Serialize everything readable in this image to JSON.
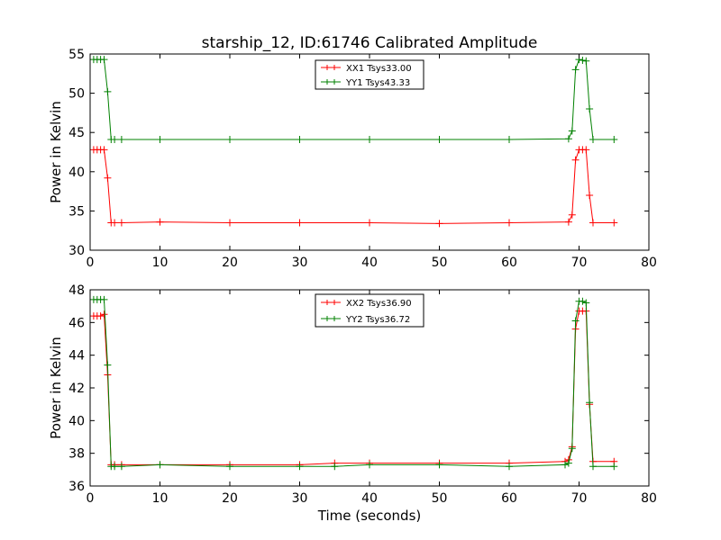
{
  "figure": {
    "title": "starship_12, ID:61746 Calibrated Amplitude",
    "xlabel": "Time (seconds)"
  },
  "chart_data": [
    {
      "type": "line",
      "title": "starship_12, ID:61746 Calibrated Amplitude",
      "xlabel": "",
      "ylabel": "Power in Kelvin",
      "xlim": [
        0,
        80
      ],
      "ylim": [
        30,
        55
      ],
      "xticks": [
        "0",
        "10",
        "20",
        "30",
        "40",
        "50",
        "60",
        "70",
        "80"
      ],
      "yticks": [
        "30",
        "35",
        "40",
        "45",
        "50",
        "55"
      ],
      "grid": false,
      "legend": "top-center",
      "marker": "+",
      "series": [
        {
          "name": "XX1 Tsys33.00",
          "color": "#ff0000",
          "x": [
            0.5,
            1.0,
            1.5,
            2.0,
            2.5,
            3.0,
            3.5,
            4.5,
            10,
            20,
            30,
            40,
            50,
            60,
            68.5,
            69.0,
            69.5,
            70.0,
            70.5,
            71.0,
            71.5,
            72.0,
            75.0
          ],
          "values": [
            42.8,
            42.8,
            42.8,
            42.8,
            39.2,
            33.5,
            33.5,
            33.5,
            33.6,
            33.5,
            33.5,
            33.5,
            33.4,
            33.5,
            33.6,
            34.5,
            41.5,
            42.8,
            42.8,
            42.8,
            37.0,
            33.5,
            33.5
          ]
        },
        {
          "name": "YY1 Tsys43.33",
          "color": "#008000",
          "x": [
            0.5,
            1.0,
            1.5,
            2.0,
            2.5,
            3.0,
            3.5,
            4.5,
            10,
            20,
            30,
            40,
            50,
            60,
            68.5,
            69.0,
            69.5,
            70.0,
            70.5,
            71.0,
            71.5,
            72.0,
            75.0
          ],
          "values": [
            54.3,
            54.3,
            54.3,
            54.3,
            50.2,
            44.1,
            44.1,
            44.1,
            44.1,
            44.1,
            44.1,
            44.1,
            44.1,
            44.1,
            44.2,
            45.2,
            53.0,
            54.3,
            54.2,
            54.1,
            48.0,
            44.1,
            44.1
          ]
        }
      ]
    },
    {
      "type": "line",
      "title": "",
      "xlabel": "Time (seconds)",
      "ylabel": "Power in Kelvin",
      "xlim": [
        0,
        80
      ],
      "ylim": [
        36,
        48
      ],
      "xticks": [
        "0",
        "10",
        "20",
        "30",
        "40",
        "50",
        "60",
        "70",
        "80"
      ],
      "yticks": [
        "36",
        "38",
        "40",
        "42",
        "44",
        "46",
        "48"
      ],
      "grid": false,
      "legend": "top-center",
      "marker": "+",
      "series": [
        {
          "name": "XX2 Tsys36.90",
          "color": "#ff0000",
          "x": [
            0.5,
            1.0,
            1.5,
            2.0,
            2.5,
            3.0,
            3.5,
            4.5,
            10,
            20,
            30,
            35,
            40,
            50,
            60,
            68.0,
            68.5,
            69.0,
            69.5,
            70.0,
            70.5,
            71.0,
            71.5,
            72.0,
            75.0
          ],
          "values": [
            46.4,
            46.4,
            46.4,
            46.5,
            42.8,
            37.3,
            37.3,
            37.3,
            37.3,
            37.3,
            37.3,
            37.4,
            37.4,
            37.4,
            37.4,
            37.5,
            37.6,
            38.4,
            45.6,
            46.7,
            46.7,
            46.7,
            41.0,
            37.5,
            37.5
          ]
        },
        {
          "name": "YY2 Tsys36.72",
          "color": "#008000",
          "x": [
            0.5,
            1.0,
            1.5,
            2.0,
            2.5,
            3.0,
            3.5,
            4.5,
            10,
            20,
            30,
            35,
            40,
            50,
            60,
            68.0,
            68.5,
            69.0,
            69.5,
            70.0,
            70.5,
            71.0,
            71.5,
            72.0,
            75.0
          ],
          "values": [
            47.4,
            47.4,
            47.4,
            47.4,
            43.4,
            37.2,
            37.2,
            37.2,
            37.3,
            37.2,
            37.2,
            37.2,
            37.3,
            37.3,
            37.2,
            37.3,
            37.4,
            38.3,
            46.1,
            47.3,
            47.3,
            47.2,
            41.1,
            37.2,
            37.2
          ]
        }
      ]
    }
  ]
}
